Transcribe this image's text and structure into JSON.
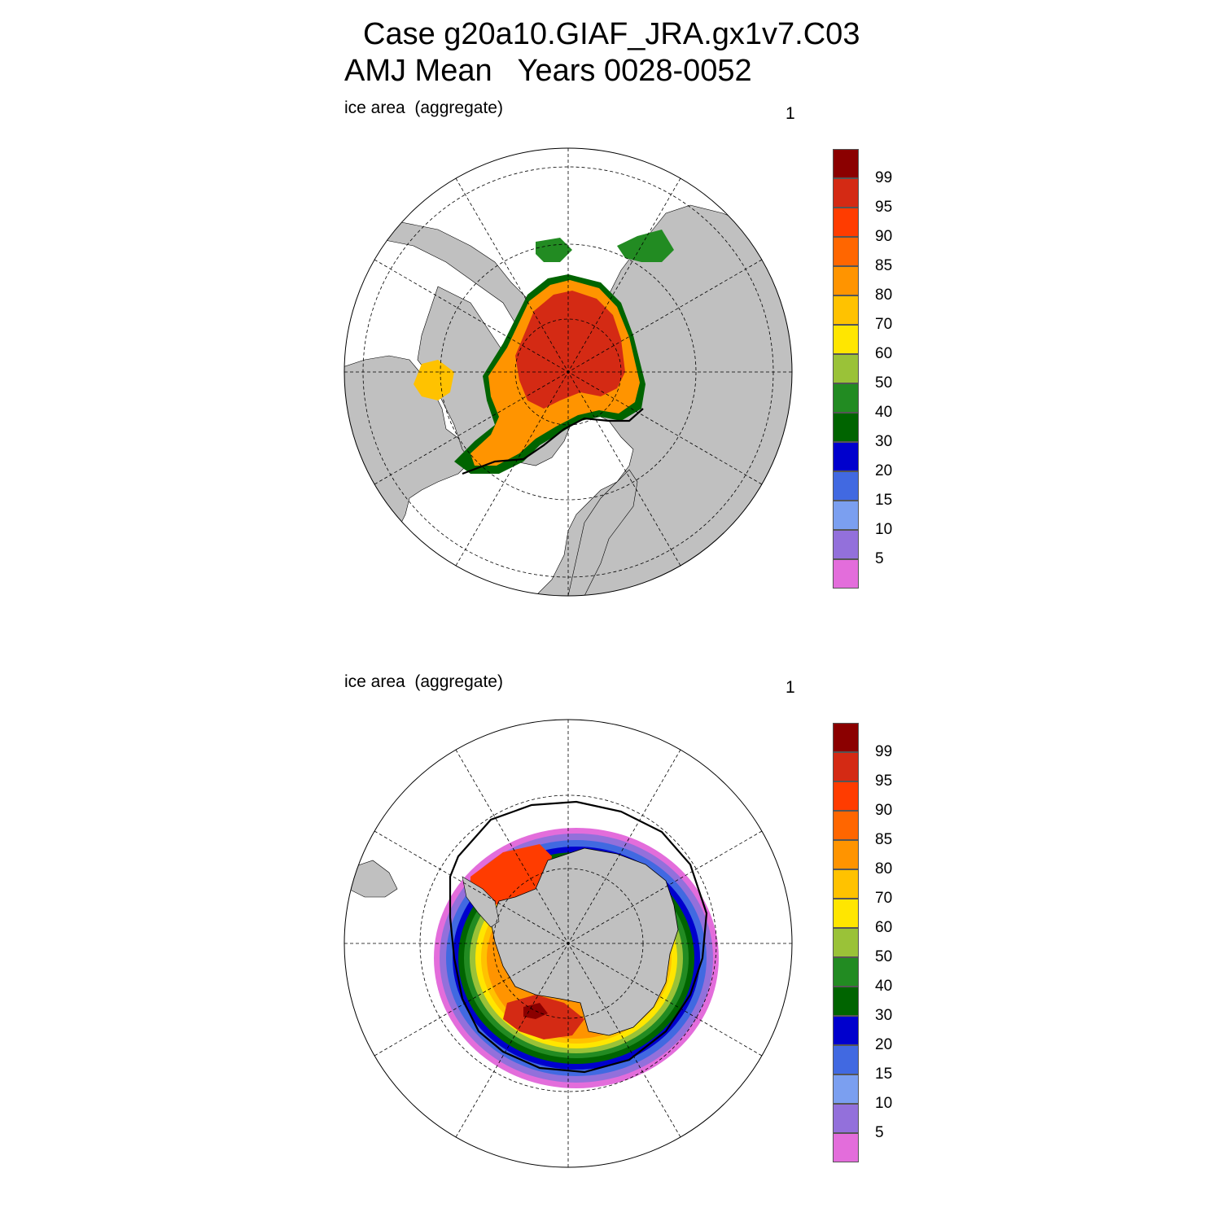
{
  "header": {
    "title_line1": "Case g20a10.GIAF_JRA.gx1v7.C03",
    "title_line2": "AMJ Mean   Years 0028-0052"
  },
  "panels": [
    {
      "id": "north",
      "hemisphere": "north",
      "left_label": "ice area  (aggregate)",
      "right_label": "1"
    },
    {
      "id": "south",
      "hemisphere": "south",
      "left_label": "ice area  (aggregate)",
      "right_label": "1"
    }
  ],
  "colorbar": {
    "tick_labels": [
      "99",
      "95",
      "90",
      "85",
      "80",
      "70",
      "60",
      "50",
      "40",
      "30",
      "20",
      "15",
      "10",
      "5"
    ],
    "colors_top_to_bottom": [
      "#8b0000",
      "#d42a14",
      "#ff3c00",
      "#ff6600",
      "#ff9400",
      "#ffc200",
      "#ffe600",
      "#9ac238",
      "#228b22",
      "#006400",
      "#0000cd",
      "#4169e1",
      "#7b9ff0",
      "#9370db",
      "#e36ddb"
    ]
  },
  "map_colors": {
    "land": "#c0c0c0",
    "ocean": "#ffffff",
    "grid": "#000000",
    "ice_edge_contour": "#000000"
  }
}
